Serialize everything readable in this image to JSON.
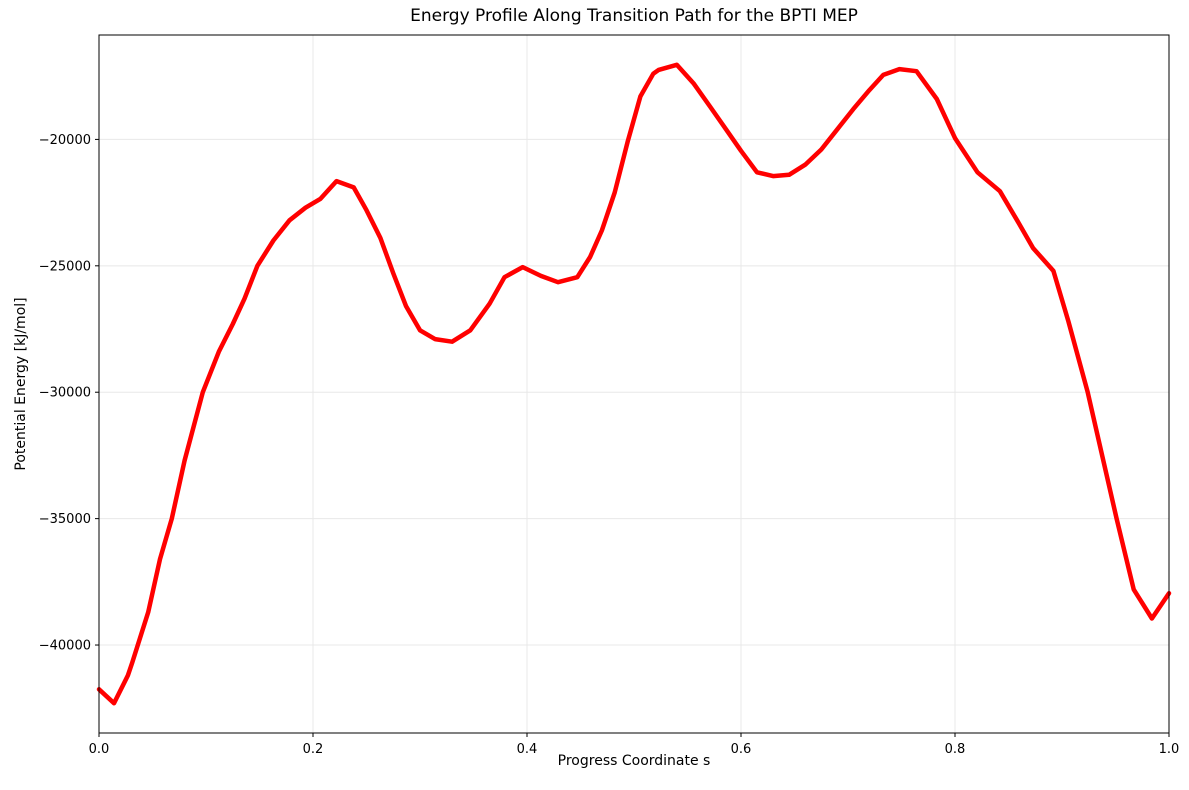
{
  "colors": {
    "line": "#ff0000",
    "grid": "#e8e8e8",
    "spine": "#000000",
    "tick": "#000000",
    "text": "#000000",
    "background": "#ffffff"
  },
  "chart_data": {
    "type": "line",
    "title": "Energy Profile Along Transition Path for the BPTI MEP",
    "xlabel": "Progress Coordinate s",
    "ylabel": "Potential Energy [kJ/mol]",
    "xlim": [
      0.0,
      1.0
    ],
    "ylim": [
      -43480,
      -15870
    ],
    "grid": true,
    "legend": "none",
    "line": {
      "color": "#ff0000",
      "width": 4.5
    },
    "xticks": {
      "values": [
        0.0,
        0.2,
        0.4,
        0.6,
        0.8,
        1.0
      ],
      "labels": [
        "0.0",
        "0.2",
        "0.4",
        "0.6",
        "0.8",
        "1.0"
      ]
    },
    "yticks": {
      "values": [
        -40000,
        -35000,
        -30000,
        -25000,
        -20000
      ],
      "labels": [
        "−40000",
        "−35000",
        "−30000",
        "−25000",
        "−20000"
      ]
    },
    "points": [
      [
        0.0,
        -41750
      ],
      [
        0.014,
        -42300
      ],
      [
        0.027,
        -41200
      ],
      [
        0.031,
        -40700
      ],
      [
        0.046,
        -38700
      ],
      [
        0.057,
        -36600
      ],
      [
        0.068,
        -35000
      ],
      [
        0.08,
        -32700
      ],
      [
        0.097,
        -30000
      ],
      [
        0.112,
        -28400
      ],
      [
        0.125,
        -27300
      ],
      [
        0.136,
        -26300
      ],
      [
        0.148,
        -25000
      ],
      [
        0.163,
        -24000
      ],
      [
        0.178,
        -23200
      ],
      [
        0.193,
        -22700
      ],
      [
        0.207,
        -22350
      ],
      [
        0.222,
        -21650
      ],
      [
        0.238,
        -21900
      ],
      [
        0.25,
        -22800
      ],
      [
        0.263,
        -23900
      ],
      [
        0.275,
        -25300
      ],
      [
        0.287,
        -26600
      ],
      [
        0.3,
        -27550
      ],
      [
        0.314,
        -27900
      ],
      [
        0.33,
        -28000
      ],
      [
        0.347,
        -27550
      ],
      [
        0.365,
        -26500
      ],
      [
        0.379,
        -25450
      ],
      [
        0.396,
        -25050
      ],
      [
        0.413,
        -25400
      ],
      [
        0.429,
        -25650
      ],
      [
        0.447,
        -25450
      ],
      [
        0.459,
        -24650
      ],
      [
        0.47,
        -23600
      ],
      [
        0.482,
        -22100
      ],
      [
        0.494,
        -20100
      ],
      [
        0.506,
        -18300
      ],
      [
        0.518,
        -17400
      ],
      [
        0.523,
        -17250
      ],
      [
        0.54,
        -17050
      ],
      [
        0.556,
        -17800
      ],
      [
        0.571,
        -18700
      ],
      [
        0.586,
        -19600
      ],
      [
        0.6,
        -20450
      ],
      [
        0.615,
        -21300
      ],
      [
        0.63,
        -21450
      ],
      [
        0.645,
        -21400
      ],
      [
        0.66,
        -21000
      ],
      [
        0.675,
        -20400
      ],
      [
        0.69,
        -19600
      ],
      [
        0.705,
        -18800
      ],
      [
        0.72,
        -18050
      ],
      [
        0.733,
        -17450
      ],
      [
        0.748,
        -17220
      ],
      [
        0.764,
        -17300
      ],
      [
        0.783,
        -18400
      ],
      [
        0.8,
        -19950
      ],
      [
        0.821,
        -21300
      ],
      [
        0.842,
        -22050
      ],
      [
        0.858,
        -23200
      ],
      [
        0.873,
        -24300
      ],
      [
        0.892,
        -25200
      ],
      [
        0.906,
        -27200
      ],
      [
        0.924,
        -30000
      ],
      [
        0.938,
        -32600
      ],
      [
        0.951,
        -35000
      ],
      [
        0.967,
        -37800
      ],
      [
        0.984,
        -38950
      ],
      [
        1.0,
        -37950
      ]
    ]
  }
}
